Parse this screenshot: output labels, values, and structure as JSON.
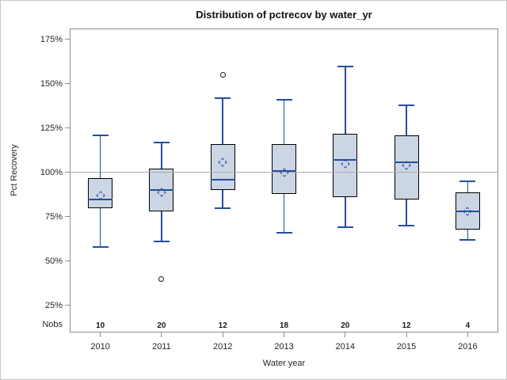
{
  "window": {
    "title": "Distribution of pctrecov by water_yr"
  },
  "colors": {
    "box_fill": "#ccd5e3",
    "box_border": "#000000",
    "line_blue": "#234f9e",
    "outlier_stroke": "#1a1a1a",
    "gridline": "#ababab",
    "frame": "#8f8f8f",
    "text": "#262626",
    "page_border": "#c6c6c6"
  },
  "chart_data": {
    "type": "box",
    "title": "Distribution of pctrecov by water_yr",
    "xlabel": "Water year",
    "ylabel": "Pct Recovery",
    "nobs_label": "Nobs",
    "grid": "refline only at 100%",
    "legend": "none",
    "ylim": [
      9.8,
      181.25
    ],
    "refline": 100,
    "y_ticks": [
      {
        "value": 175,
        "label": "175%"
      },
      {
        "value": 150,
        "label": "150%"
      },
      {
        "value": 125,
        "label": "125%"
      },
      {
        "value": 100,
        "label": "100%"
      },
      {
        "value": 75,
        "label": "75%"
      },
      {
        "value": 50,
        "label": "50%"
      },
      {
        "value": 25,
        "label": "25%"
      }
    ],
    "categories": [
      "2010",
      "2011",
      "2012",
      "2013",
      "2014",
      "2015",
      "2016"
    ],
    "series": [
      {
        "category": "2010",
        "nobs": "10",
        "whisker_low": 58,
        "q1": 80,
        "median": 85,
        "mean": 87,
        "q3": 97,
        "whisker_high": 121,
        "outliers": []
      },
      {
        "category": "2011",
        "nobs": "20",
        "whisker_low": 61,
        "q1": 78,
        "median": 90,
        "mean": 89,
        "q3": 102,
        "whisker_high": 117,
        "outliers": [
          40
        ]
      },
      {
        "category": "2012",
        "nobs": "12",
        "whisker_low": 80,
        "q1": 90,
        "median": 96,
        "mean": 106,
        "q3": 116,
        "whisker_high": 142,
        "outliers": [
          155
        ]
      },
      {
        "category": "2013",
        "nobs": "18",
        "whisker_low": 66,
        "q1": 88,
        "median": 101,
        "mean": 100,
        "q3": 116,
        "whisker_high": 141,
        "outliers": []
      },
      {
        "category": "2014",
        "nobs": "20",
        "whisker_low": 69,
        "q1": 86,
        "median": 107,
        "mean": 105,
        "q3": 122,
        "whisker_high": 160,
        "outliers": []
      },
      {
        "category": "2015",
        "nobs": "12",
        "whisker_low": 70,
        "q1": 85,
        "median": 106,
        "mean": 104,
        "q3": 121,
        "whisker_high": 138,
        "outliers": []
      },
      {
        "category": "2016",
        "nobs": "4",
        "whisker_low": 62,
        "q1": 68,
        "median": 78,
        "mean": 78,
        "q3": 89,
        "whisker_high": 95,
        "outliers": []
      }
    ]
  }
}
